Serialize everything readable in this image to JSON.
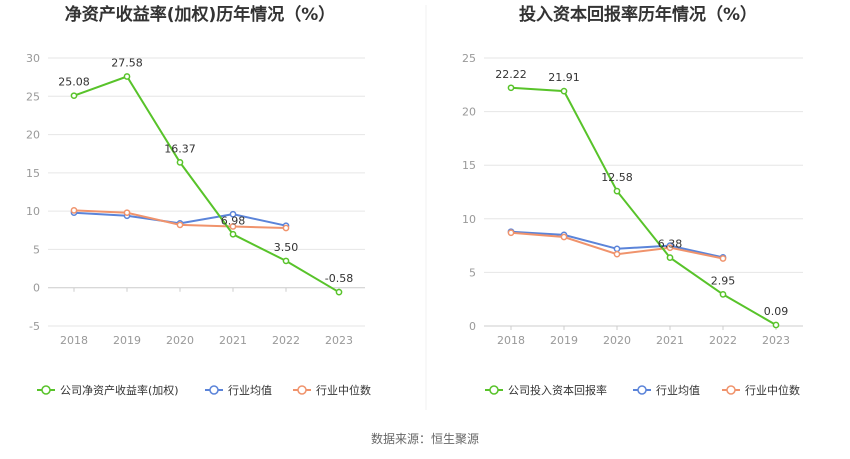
{
  "source_label": "数据来源：恒生聚源",
  "colors": {
    "company": "#58c32a",
    "avg": "#5b84d9",
    "median": "#f0936c",
    "grid": "#e6e6e6",
    "axis": "#cccccc"
  },
  "legend_icon": "circle-line-icon",
  "chart_data": [
    {
      "type": "line",
      "title": "净资产收益率(加权)历年情况（%）",
      "categories": [
        "2018",
        "2019",
        "2020",
        "2021",
        "2022",
        "2023"
      ],
      "ylim": [
        -5,
        30
      ],
      "yticks": [
        "-5",
        "0",
        "5",
        "10",
        "15",
        "20",
        "25",
        "30"
      ],
      "grid": true,
      "legend_position": "bottom",
      "series": [
        {
          "name": "公司净资产收益率(加权)",
          "values": [
            25.08,
            27.58,
            16.37,
            6.98,
            3.5,
            -0.58
          ],
          "labels": [
            "25.08",
            "27.58",
            "16.37",
            "6.98",
            "3.50",
            "-0.58"
          ]
        },
        {
          "name": "行业均值",
          "values": [
            9.8,
            9.4,
            8.4,
            9.6,
            8.1,
            null
          ]
        },
        {
          "name": "行业中位数",
          "values": [
            10.1,
            9.8,
            8.2,
            8.0,
            7.8,
            null
          ]
        }
      ]
    },
    {
      "type": "line",
      "title": "投入资本回报率历年情况（%）",
      "categories": [
        "2018",
        "2019",
        "2020",
        "2021",
        "2022",
        "2023"
      ],
      "ylim": [
        0,
        25
      ],
      "yticks": [
        "0",
        "5",
        "10",
        "15",
        "20",
        "25"
      ],
      "grid": true,
      "legend_position": "bottom",
      "series": [
        {
          "name": "公司投入资本回报率",
          "values": [
            22.22,
            21.91,
            12.58,
            6.38,
            2.95,
            0.09
          ],
          "labels": [
            "22.22",
            "21.91",
            "12.58",
            "6.38",
            "2.95",
            "0.09"
          ]
        },
        {
          "name": "行业均值",
          "values": [
            8.8,
            8.5,
            7.2,
            7.5,
            6.4,
            null
          ]
        },
        {
          "name": "行业中位数",
          "values": [
            8.7,
            8.3,
            6.7,
            7.3,
            6.3,
            null
          ]
        }
      ]
    }
  ]
}
